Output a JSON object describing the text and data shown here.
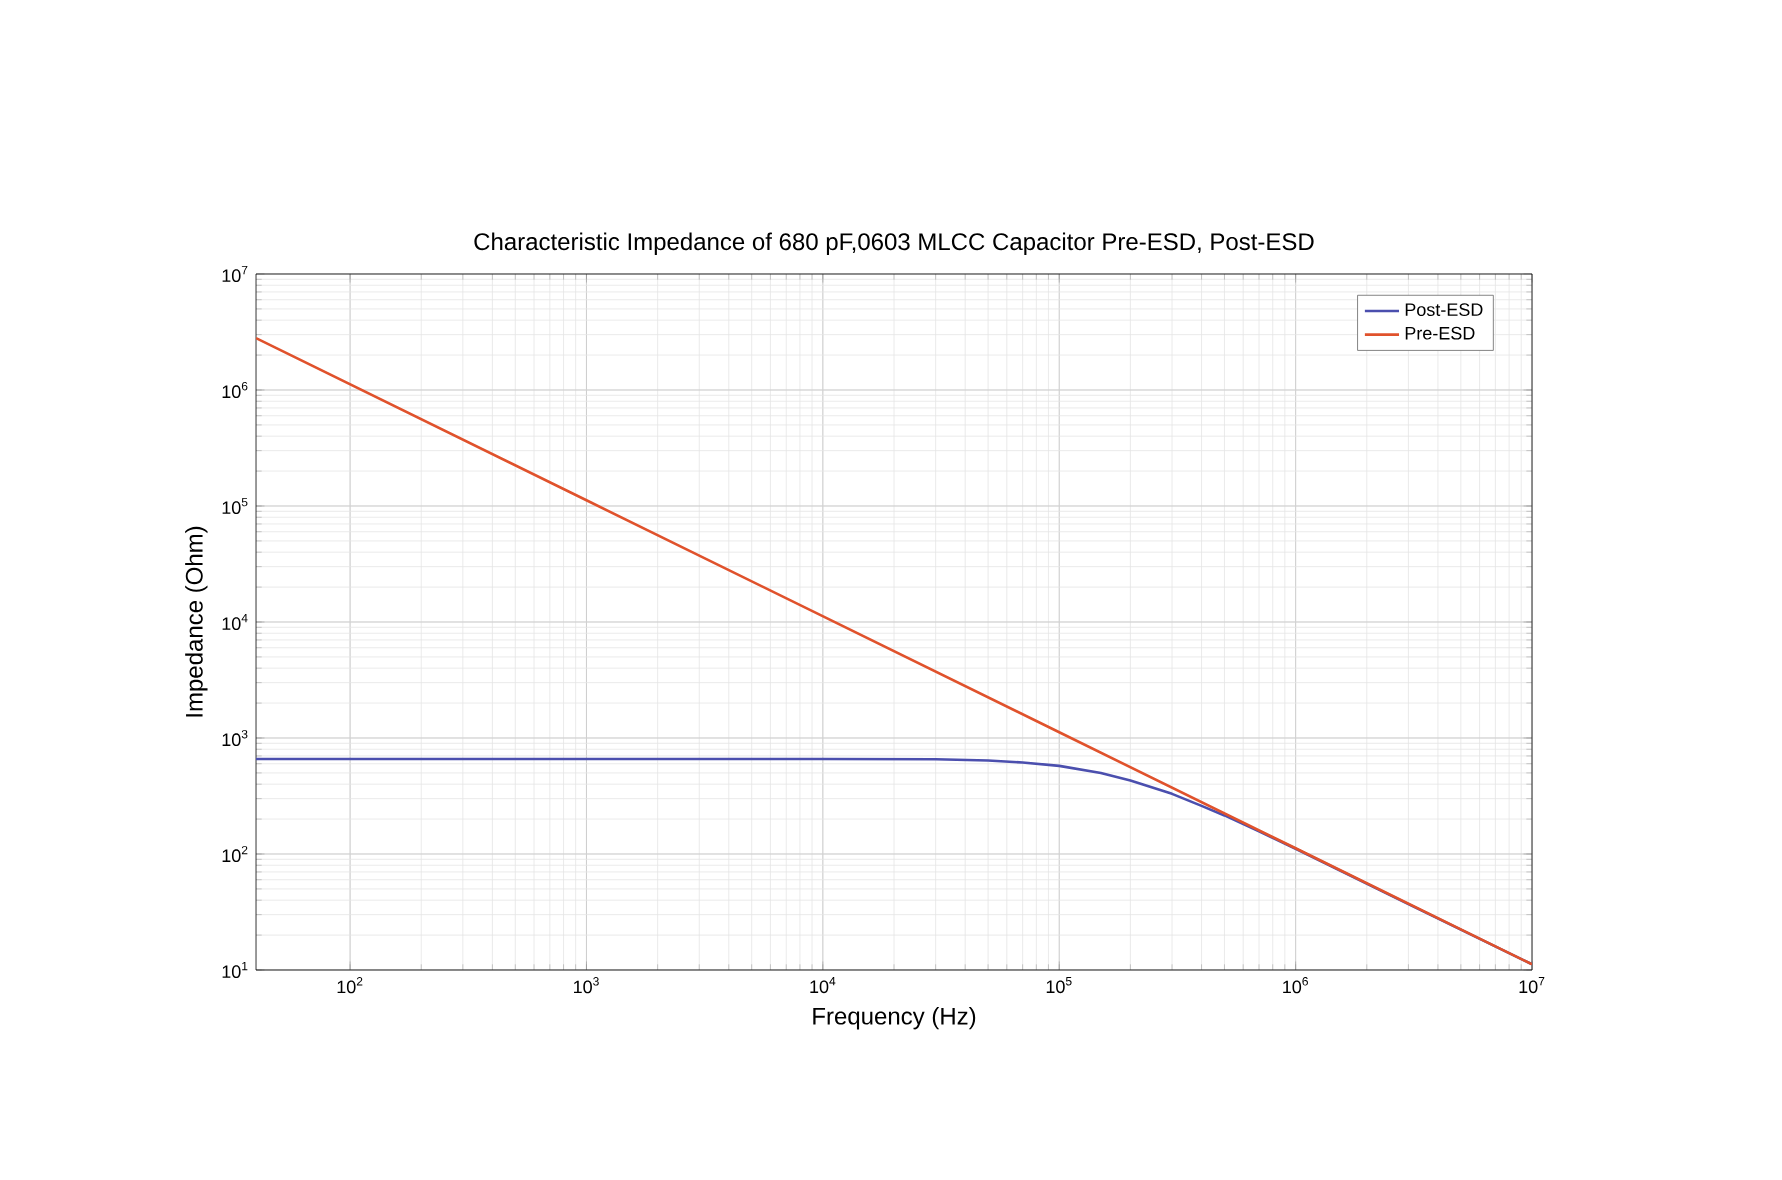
{
  "chart_data": {
    "type": "line",
    "title": "Characteristic Impedance of 680 pF,0603 MLCC Capacitor Pre-ESD, Post-ESD",
    "xlabel": "Frequency (Hz)",
    "ylabel": "Impedance (Ohm)",
    "log": "xy",
    "grid": true,
    "legend": "top right",
    "xlim": [
      40,
      10000000
    ],
    "ylim": [
      10,
      10000000
    ],
    "xticks": [
      {
        "value": 100,
        "label": "10$^{2}$"
      },
      {
        "value": 1000,
        "label": "10$^{3}$"
      },
      {
        "value": 10000,
        "label": "10$^{4}$"
      },
      {
        "value": 100000,
        "label": "10$^{5}$"
      },
      {
        "value": 1000000,
        "label": "10$^{6}$"
      },
      {
        "value": 10000000,
        "label": "10$^{7}$"
      }
    ],
    "yticks": [
      {
        "value": 10,
        "label": "10$^{1}$"
      },
      {
        "value": 100,
        "label": "10$^{2}$"
      },
      {
        "value": 1000,
        "label": "10$^{3}$"
      },
      {
        "value": 10000,
        "label": "10$^{4}$"
      },
      {
        "value": 100000,
        "label": "10$^{5}$"
      },
      {
        "value": 1000000,
        "label": "10$^{6}$"
      },
      {
        "value": 10000000,
        "label": "10$^{7}$"
      }
    ],
    "series": [
      {
        "name": "Post-ESD",
        "color": "#4b4fae",
        "x": [
          40,
          1000,
          10000,
          30000,
          50000,
          70000,
          100000,
          150000,
          200000,
          300000,
          400000,
          500000,
          700000,
          1000000,
          3000000,
          10000000
        ],
        "values": [
          660,
          660,
          660,
          655,
          640,
          615,
          575,
          500,
          430,
          330,
          260,
          215,
          157,
          111,
          37,
          11.2
        ]
      },
      {
        "name": "Pre-ESD",
        "color": "#e0522c",
        "x": [
          40,
          1000,
          100000,
          1000000,
          10000000
        ],
        "values": [
          2800000,
          112000,
          1120,
          112,
          11.2
        ]
      }
    ]
  }
}
